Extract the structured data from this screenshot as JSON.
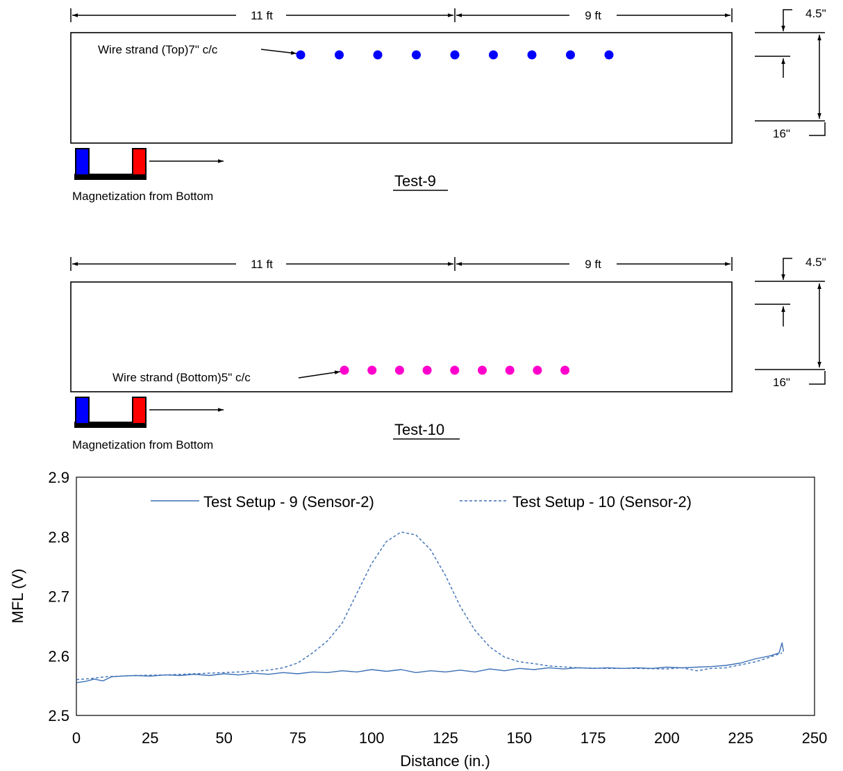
{
  "diagrams": [
    {
      "id": "test-9",
      "title": "Test-9",
      "span_left": "11 ft",
      "span_right": "9 ft",
      "top_offset": "4.5\"",
      "depth": "16\"",
      "strand_label": "Wire strand  (Top)7\" c/c",
      "strand_color": "#0000ff",
      "strand_count": 9,
      "strand_position": "top",
      "magnet_label": "Magnetization from Bottom"
    },
    {
      "id": "test-10",
      "title": "Test-10",
      "span_left": "11 ft",
      "span_right": "9 ft",
      "top_offset": "4.5\"",
      "depth": "16\"",
      "strand_label": "Wire strand  (Bottom)5\" c/c",
      "strand_color": "#ff00cc",
      "strand_count": 9,
      "strand_position": "bottom",
      "magnet_label": "Magnetization from Bottom"
    }
  ],
  "magnet_colors": {
    "north": "#0000ff",
    "south": "#ff0000"
  },
  "chart_data": {
    "type": "line",
    "xlabel": "Distance (in.)",
    "ylabel": "MFL (V)",
    "xlim": [
      0,
      250
    ],
    "ylim": [
      2.5,
      2.9
    ],
    "xticks": [
      0,
      25,
      50,
      75,
      100,
      125,
      150,
      175,
      200,
      225,
      250
    ],
    "yticks": [
      "2.5",
      "2.6",
      "2.7",
      "2.8",
      "2.9"
    ],
    "legend_position": "top",
    "grid": false,
    "series": [
      {
        "name": "Test Setup - 9 (Sensor-2)",
        "style": "solid",
        "color": "#3b6fb6",
        "x": [
          0,
          3,
          6,
          9,
          12,
          15,
          20,
          25,
          30,
          35,
          40,
          45,
          50,
          55,
          60,
          65,
          70,
          75,
          80,
          85,
          90,
          95,
          100,
          105,
          110,
          115,
          120,
          125,
          130,
          135,
          140,
          145,
          150,
          155,
          160,
          165,
          170,
          175,
          180,
          185,
          190,
          195,
          200,
          205,
          210,
          215,
          220,
          225,
          230,
          235,
          238,
          239,
          239.5
        ],
        "y": [
          2.555,
          2.557,
          2.561,
          2.558,
          2.565,
          2.566,
          2.567,
          2.566,
          2.568,
          2.567,
          2.569,
          2.567,
          2.57,
          2.568,
          2.571,
          2.569,
          2.572,
          2.57,
          2.573,
          2.572,
          2.575,
          2.573,
          2.577,
          2.574,
          2.577,
          2.572,
          2.575,
          2.573,
          2.576,
          2.573,
          2.578,
          2.575,
          2.579,
          2.577,
          2.58,
          2.578,
          2.58,
          2.579,
          2.58,
          2.579,
          2.58,
          2.579,
          2.581,
          2.58,
          2.581,
          2.582,
          2.584,
          2.588,
          2.595,
          2.6,
          2.605,
          2.622,
          2.607
        ]
      },
      {
        "name": "Test Setup - 10 (Sensor-2)",
        "style": "dashed",
        "color": "#3b6fb6",
        "x": [
          0,
          5,
          10,
          20,
          30,
          40,
          50,
          60,
          65,
          70,
          75,
          80,
          85,
          90,
          95,
          100,
          105,
          110,
          115,
          120,
          125,
          130,
          135,
          140,
          145,
          150,
          155,
          160,
          170,
          180,
          190,
          200,
          205,
          210,
          215,
          220,
          225,
          230,
          235,
          239
        ],
        "y": [
          2.56,
          2.562,
          2.565,
          2.567,
          2.568,
          2.57,
          2.572,
          2.574,
          2.576,
          2.58,
          2.588,
          2.605,
          2.625,
          2.655,
          2.705,
          2.755,
          2.792,
          2.808,
          2.803,
          2.778,
          2.735,
          2.683,
          2.643,
          2.615,
          2.598,
          2.59,
          2.587,
          2.583,
          2.58,
          2.579,
          2.579,
          2.578,
          2.58,
          2.575,
          2.579,
          2.58,
          2.585,
          2.59,
          2.598,
          2.605
        ]
      }
    ]
  }
}
